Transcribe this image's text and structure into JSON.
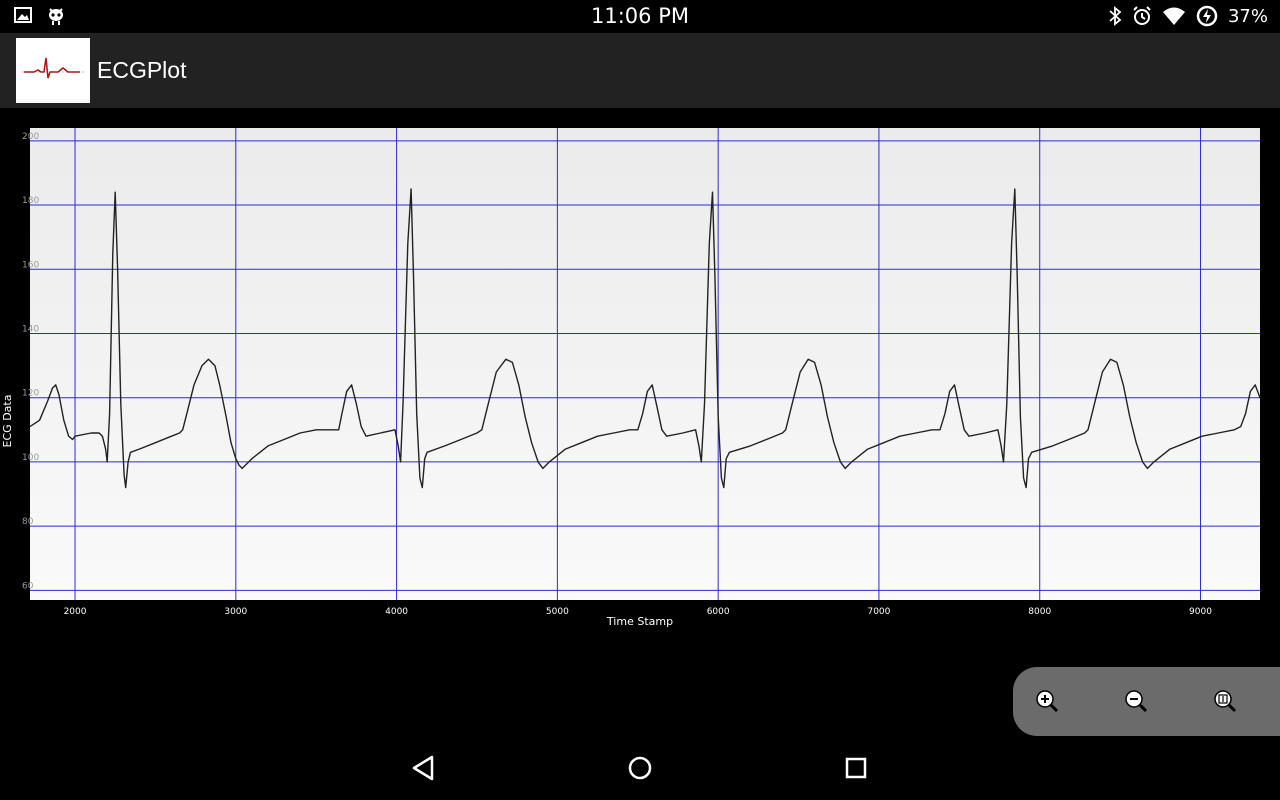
{
  "status_bar": {
    "time": "11:06 PM",
    "battery": "37%",
    "left_icons": [
      "image-icon",
      "android-debug-icon"
    ],
    "right_icons": [
      "bluetooth-icon",
      "alarm-icon",
      "wifi-icon",
      "battery-charging-icon"
    ]
  },
  "app": {
    "title": "ECGPlot",
    "logo": "ecg-logo-icon"
  },
  "chart_data": {
    "type": "line",
    "xlabel": "Time Stamp",
    "ylabel": "ECG Data",
    "xlim": [
      1720,
      9370
    ],
    "ylim": [
      57,
      204
    ],
    "xticks": [
      2000,
      3000,
      4000,
      5000,
      6000,
      7000,
      8000,
      9000
    ],
    "yticks": [
      60,
      80,
      100,
      120,
      140,
      160,
      180,
      200
    ],
    "grid": true,
    "colors": {
      "line": "#222222",
      "grid": "#2b2bd6",
      "background": "#f0f0f0"
    },
    "series": [
      {
        "values": [
          [
            1720,
            111
          ],
          [
            1780,
            113
          ],
          [
            1830,
            119
          ],
          [
            1860,
            123
          ],
          [
            1880,
            124
          ],
          [
            1900,
            121
          ],
          [
            1930,
            113
          ],
          [
            1960,
            108
          ],
          [
            1985,
            107
          ],
          [
            2000,
            108
          ],
          [
            2100,
            109
          ],
          [
            2150,
            109
          ],
          [
            2170,
            108
          ],
          [
            2190,
            104
          ],
          [
            2200,
            100
          ],
          [
            2215,
            115
          ],
          [
            2235,
            165
          ],
          [
            2250,
            184
          ],
          [
            2265,
            160
          ],
          [
            2285,
            118
          ],
          [
            2305,
            96
          ],
          [
            2315,
            92
          ],
          [
            2330,
            100
          ],
          [
            2345,
            103
          ],
          [
            2400,
            104
          ],
          [
            2500,
            106
          ],
          [
            2600,
            108
          ],
          [
            2650,
            109
          ],
          [
            2670,
            110
          ],
          [
            2700,
            116
          ],
          [
            2740,
            124
          ],
          [
            2790,
            130
          ],
          [
            2830,
            132
          ],
          [
            2870,
            130
          ],
          [
            2900,
            124
          ],
          [
            2940,
            114
          ],
          [
            2970,
            106
          ],
          [
            3000,
            101
          ],
          [
            3020,
            99
          ],
          [
            3040,
            98
          ],
          [
            3100,
            101
          ],
          [
            3200,
            105
          ],
          [
            3300,
            107
          ],
          [
            3400,
            109
          ],
          [
            3500,
            110
          ],
          [
            3600,
            110
          ],
          [
            3640,
            110
          ],
          [
            3660,
            115
          ],
          [
            3690,
            122
          ],
          [
            3720,
            124
          ],
          [
            3750,
            118
          ],
          [
            3780,
            111
          ],
          [
            3810,
            108
          ],
          [
            3900,
            109
          ],
          [
            3990,
            110
          ],
          [
            4010,
            105
          ],
          [
            4025,
            100
          ],
          [
            4040,
            118
          ],
          [
            4070,
            168
          ],
          [
            4090,
            185
          ],
          [
            4105,
            158
          ],
          [
            4125,
            115
          ],
          [
            4145,
            95
          ],
          [
            4160,
            92
          ],
          [
            4175,
            101
          ],
          [
            4190,
            103
          ],
          [
            4300,
            105
          ],
          [
            4400,
            107
          ],
          [
            4500,
            109
          ],
          [
            4530,
            110
          ],
          [
            4570,
            118
          ],
          [
            4620,
            128
          ],
          [
            4680,
            132
          ],
          [
            4720,
            131
          ],
          [
            4760,
            124
          ],
          [
            4800,
            114
          ],
          [
            4840,
            106
          ],
          [
            4880,
            100
          ],
          [
            4910,
            98
          ],
          [
            4950,
            100
          ],
          [
            5050,
            104
          ],
          [
            5150,
            106
          ],
          [
            5250,
            108
          ],
          [
            5350,
            109
          ],
          [
            5450,
            110
          ],
          [
            5500,
            110
          ],
          [
            5530,
            115
          ],
          [
            5560,
            122
          ],
          [
            5590,
            124
          ],
          [
            5620,
            117
          ],
          [
            5650,
            110
          ],
          [
            5680,
            108
          ],
          [
            5780,
            109
          ],
          [
            5860,
            110
          ],
          [
            5880,
            105
          ],
          [
            5895,
            100
          ],
          [
            5915,
            118
          ],
          [
            5945,
            168
          ],
          [
            5965,
            184
          ],
          [
            5980,
            158
          ],
          [
            6000,
            114
          ],
          [
            6020,
            95
          ],
          [
            6035,
            92
          ],
          [
            6050,
            101
          ],
          [
            6070,
            103
          ],
          [
            6200,
            105
          ],
          [
            6300,
            107
          ],
          [
            6400,
            109
          ],
          [
            6420,
            110
          ],
          [
            6460,
            118
          ],
          [
            6510,
            128
          ],
          [
            6560,
            132
          ],
          [
            6600,
            131
          ],
          [
            6640,
            124
          ],
          [
            6680,
            114
          ],
          [
            6720,
            106
          ],
          [
            6760,
            100
          ],
          [
            6790,
            98
          ],
          [
            6830,
            100
          ],
          [
            6930,
            104
          ],
          [
            7030,
            106
          ],
          [
            7130,
            108
          ],
          [
            7230,
            109
          ],
          [
            7330,
            110
          ],
          [
            7380,
            110
          ],
          [
            7410,
            115
          ],
          [
            7440,
            122
          ],
          [
            7470,
            124
          ],
          [
            7500,
            117
          ],
          [
            7530,
            110
          ],
          [
            7560,
            108
          ],
          [
            7660,
            109
          ],
          [
            7740,
            110
          ],
          [
            7760,
            105
          ],
          [
            7775,
            100
          ],
          [
            7795,
            118
          ],
          [
            7825,
            168
          ],
          [
            7845,
            185
          ],
          [
            7860,
            158
          ],
          [
            7880,
            114
          ],
          [
            7900,
            95
          ],
          [
            7915,
            92
          ],
          [
            7930,
            101
          ],
          [
            7950,
            103
          ],
          [
            8080,
            105
          ],
          [
            8180,
            107
          ],
          [
            8280,
            109
          ],
          [
            8300,
            110
          ],
          [
            8340,
            118
          ],
          [
            8390,
            128
          ],
          [
            8440,
            132
          ],
          [
            8480,
            131
          ],
          [
            8520,
            124
          ],
          [
            8560,
            114
          ],
          [
            8600,
            106
          ],
          [
            8640,
            100
          ],
          [
            8670,
            98
          ],
          [
            8710,
            100
          ],
          [
            8810,
            104
          ],
          [
            8910,
            106
          ],
          [
            9010,
            108
          ],
          [
            9110,
            109
          ],
          [
            9210,
            110
          ],
          [
            9250,
            111
          ],
          [
            9280,
            115
          ],
          [
            9310,
            122
          ],
          [
            9340,
            124
          ],
          [
            9370,
            120
          ]
        ]
      }
    ]
  },
  "zoom_controls": [
    "zoom-in-icon",
    "zoom-out-icon",
    "zoom-reset-icon"
  ],
  "nav": [
    "back-icon",
    "home-icon",
    "recents-icon"
  ]
}
